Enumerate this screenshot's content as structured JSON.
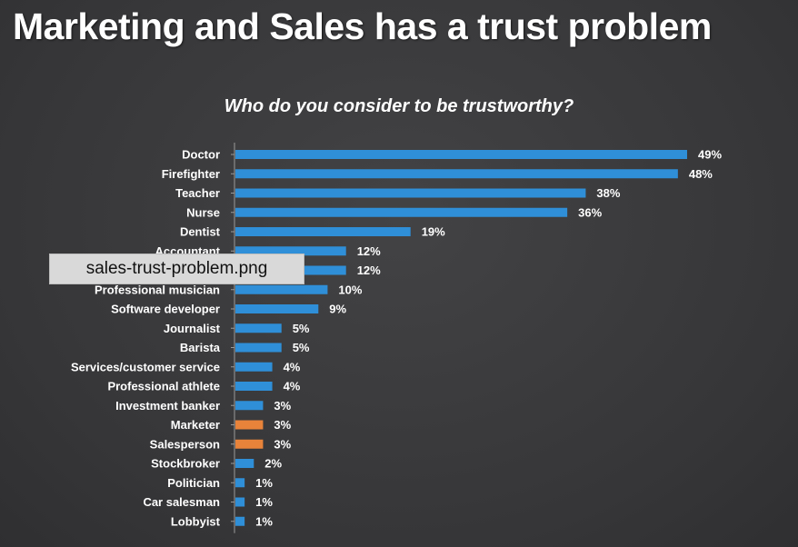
{
  "page": {
    "title": "Marketing and Sales has a trust problem",
    "subtitle": "Who do you consider to be trustworthy?"
  },
  "tooltip": {
    "filename": "sales-trust-problem.png"
  },
  "colors": {
    "default_bar": "#2f8fd8",
    "highlight_bar": "#e8833a",
    "axis": "#9a9a9a",
    "text": "#ffffff"
  },
  "chart_data": {
    "type": "bar",
    "orientation": "horizontal",
    "title": "Who do you consider to be trustworthy?",
    "categories": [
      "Doctor",
      "Firefighter",
      "Teacher",
      "Nurse",
      "Dentist",
      "Accountant",
      "",
      "Professional musician",
      "Software developer",
      "Journalist",
      "Barista",
      "Services/customer service",
      "Professional athlete",
      "Investment banker",
      "Marketer",
      "Salesperson",
      "Stockbroker",
      "Politician",
      "Car salesman",
      "Lobbyist"
    ],
    "values": [
      49,
      48,
      38,
      36,
      19,
      12,
      12,
      10,
      9,
      5,
      5,
      4,
      4,
      3,
      3,
      3,
      2,
      1,
      1,
      1
    ],
    "value_labels": [
      "49%",
      "48%",
      "38%",
      "36%",
      "19%",
      "12%",
      "12%",
      "10%",
      "9%",
      "5%",
      "5%",
      "4%",
      "4%",
      "3%",
      "3%",
      "3%",
      "2%",
      "1%",
      "1%",
      "1%"
    ],
    "highlighted": [
      "Marketer",
      "Salesperson"
    ],
    "unit": "%",
    "xlim": [
      0,
      50
    ],
    "grid": false,
    "legend": "none"
  }
}
